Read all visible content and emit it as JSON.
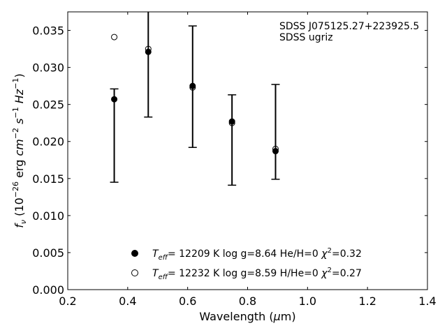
{
  "chart_data": {
    "type": "scatter",
    "xlabel": "Wavelength (μm)",
    "ylabel": "f_ν (10^-26 erg cm^-2 s^-1 Hz^-1)",
    "xlim": [
      0.2,
      1.4
    ],
    "ylim": [
      0.0,
      0.0375
    ],
    "xticks": [
      "0.2",
      "0.4",
      "0.6",
      "0.8",
      "1.0",
      "1.2",
      "1.4"
    ],
    "yticks": [
      "0.000",
      "0.005",
      "0.010",
      "0.015",
      "0.020",
      "0.025",
      "0.030",
      "0.035"
    ],
    "annotation": {
      "object": "SDSS J075125.27+223925.5",
      "photometry": "SDSS ugriz"
    },
    "observed": {
      "x": [
        0.3551,
        0.4686,
        0.6166,
        0.748,
        0.8932
      ],
      "y": [
        0.0208,
        0.0352,
        0.0274,
        0.0202,
        0.0213
      ],
      "yerr": [
        0.0063,
        0.0119,
        0.0082,
        0.0061,
        0.0064
      ]
    },
    "series": [
      {
        "name": "T_eff= 12209 K  log g=8.64  He/H=0  χ²=0.32",
        "marker": "filled-circle",
        "x": [
          0.3551,
          0.4686,
          0.6166,
          0.748,
          0.8932
        ],
        "y": [
          0.0257,
          0.0321,
          0.0275,
          0.0227,
          0.0187
        ]
      },
      {
        "name": "T_eff= 12232 K  log g=8.59  H/He=0  χ²=0.27",
        "marker": "open-circle",
        "x": [
          0.3551,
          0.4686,
          0.6166,
          0.748,
          0.8932
        ],
        "y": [
          0.0341,
          0.0325,
          0.0273,
          0.0225,
          0.019
        ]
      }
    ],
    "legend": {
      "position": "bottom-center",
      "entries": [
        {
          "teff_value": "12209 K",
          "logg": "log g=8.64",
          "comp": "He/H=0",
          "chi2": "0.32"
        },
        {
          "teff_value": "12232 K",
          "logg": "log g=8.59",
          "comp": "H/He=0",
          "chi2": "0.27"
        }
      ]
    },
    "grid": false
  }
}
